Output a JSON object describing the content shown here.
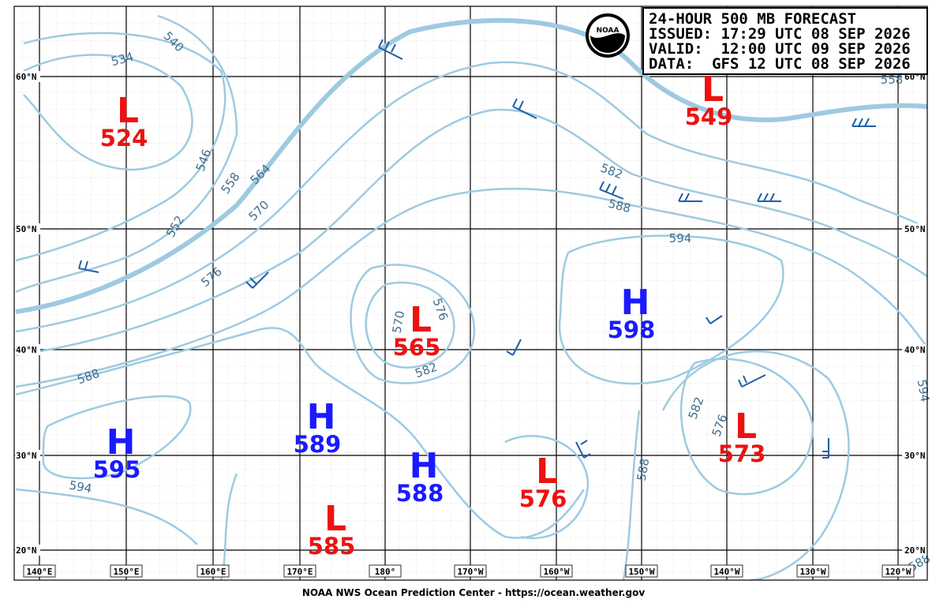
{
  "header": {
    "lines": [
      "24-HOUR 500 MB FORECAST",
      "ISSUED: 17:29 UTC 08 SEP 2026",
      "VALID:  12:00 UTC 09 SEP 2026",
      "DATA:  GFS 12 UTC 08 SEP 2026"
    ]
  },
  "logo": "NOAA",
  "map": {
    "longitudes": [
      "140°E",
      "150°E",
      "160°E",
      "170°E",
      "180°",
      "170°W",
      "160°W",
      "150°W",
      "140°W",
      "130°W",
      "120°W"
    ],
    "latitudes": [
      "60°N",
      "50°N",
      "40°N",
      "30°N",
      "20°N"
    ],
    "centers": [
      {
        "symbol": "L",
        "value": "524"
      },
      {
        "symbol": "L",
        "value": "549"
      },
      {
        "symbol": "L",
        "value": "565"
      },
      {
        "symbol": "H",
        "value": "598"
      },
      {
        "symbol": "H",
        "value": "595"
      },
      {
        "symbol": "H",
        "value": "589"
      },
      {
        "symbol": "H",
        "value": "588"
      },
      {
        "symbol": "L",
        "value": "576"
      },
      {
        "symbol": "L",
        "value": "585"
      },
      {
        "symbol": "L",
        "value": "573"
      }
    ],
    "contour_labels": [
      "534",
      "540",
      "546",
      "552",
      "558",
      "564",
      "570",
      "576",
      "582",
      "588",
      "594",
      "576",
      "570",
      "582",
      "588",
      "594",
      "582",
      "576",
      "588",
      "594",
      "558",
      "588"
    ]
  },
  "footer": "NOAA NWS Ocean Prediction Center - https://ocean.weather.gov"
}
